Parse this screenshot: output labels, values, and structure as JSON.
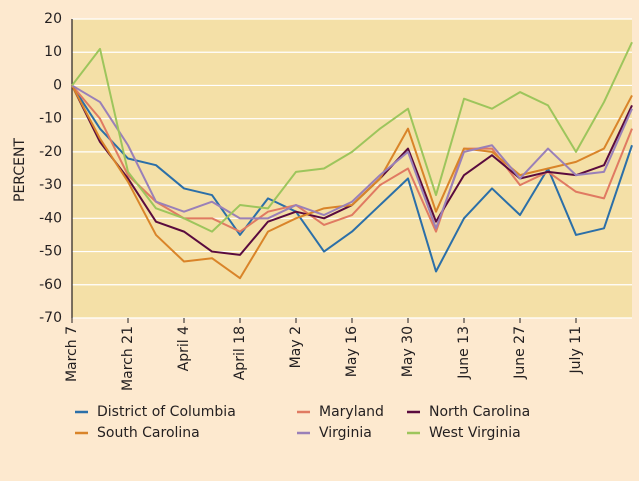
{
  "chart_data": {
    "type": "line",
    "y_label": "PERCENT",
    "categories": [
      "March 7",
      null,
      "March 21",
      null,
      "April 4",
      null,
      "April 18",
      null,
      "May 2",
      null,
      "May 16",
      null,
      "May 30",
      null,
      "June 13",
      null,
      "June 27",
      null,
      "July 11",
      null,
      null
    ],
    "ylim": [
      -70,
      20
    ],
    "yticks": [
      -70,
      -60,
      -50,
      -40,
      -30,
      -20,
      -10,
      0,
      10,
      20
    ],
    "grid": true,
    "series": [
      {
        "name": "District of Columbia",
        "color": "#2b6fa8",
        "values": [
          0,
          -13,
          -22,
          -24,
          -31,
          -33,
          -45,
          -34,
          -38,
          -50,
          -44,
          -36,
          -28,
          -56,
          -40,
          -31,
          -39,
          -25,
          -45,
          -43,
          -18
        ]
      },
      {
        "name": "Maryland",
        "color": "#e07a62",
        "values": [
          0,
          -10,
          -27,
          -35,
          -40,
          -40,
          -44,
          -38,
          -36,
          -42,
          -39,
          -30,
          -25,
          -44,
          -19,
          -19,
          -30,
          -26,
          -32,
          -34,
          -13
        ]
      },
      {
        "name": "North Carolina",
        "color": "#5a0b3e",
        "values": [
          0,
          -17,
          -28,
          -41,
          -44,
          -50,
          -51,
          -41,
          -38,
          -40,
          -36,
          -28,
          -19,
          -41,
          -27,
          -21,
          -28,
          -26,
          -27,
          -24,
          -6
        ]
      },
      {
        "name": "South Carolina",
        "color": "#d98429",
        "values": [
          0,
          -16,
          -29,
          -45,
          -53,
          -52,
          -58,
          -44,
          -40,
          -37,
          -36,
          -28,
          -13,
          -38,
          -19,
          -20,
          -27,
          -25,
          -23,
          -19,
          -3
        ]
      },
      {
        "name": "Virginia",
        "color": "#9a80b8",
        "values": [
          0,
          -5,
          -18,
          -35,
          -38,
          -35,
          -40,
          -40,
          -36,
          -39,
          -35,
          -27,
          -20,
          -43,
          -20,
          -18,
          -28,
          -19,
          -27,
          -26,
          -7
        ]
      },
      {
        "name": "West Virginia",
        "color": "#9dc55c",
        "values": [
          0,
          11,
          -26,
          -37,
          -40,
          -44,
          -36,
          -37,
          -26,
          -25,
          -20,
          -13,
          -7,
          -33,
          -4,
          -7,
          -2,
          -6,
          -20,
          -5,
          13
        ]
      }
    ]
  }
}
